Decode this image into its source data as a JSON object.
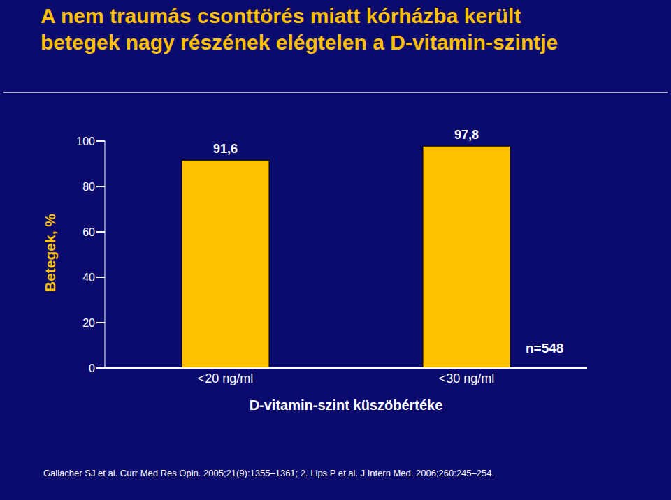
{
  "chart_data": {
    "type": "bar",
    "title": "A nem traumás csonttörés miatt kórházba került betegek nagy részének elégtelen a D-vitamin-szintje",
    "y_label": "Betegek, %",
    "x_label": "D-vitamin-szint küszöbértéke",
    "categories": [
      "<20 ng/ml",
      "<30 ng/ml"
    ],
    "values": [
      91.6,
      97.8
    ],
    "value_labels": [
      "91,6",
      "97,8"
    ],
    "data_labels": true,
    "color": "#ffc000",
    "ylim": [
      0,
      100
    ],
    "yticks": [
      0,
      20,
      40,
      60,
      80,
      100
    ],
    "grid": false,
    "annotation": "n=548",
    "footnote": "Gallacher SJ et al. Curr Med Res Opin. 2005;21(9):1355–1361; 2. Lips P et al. J Intern Med. 2006;260:245–254."
  }
}
